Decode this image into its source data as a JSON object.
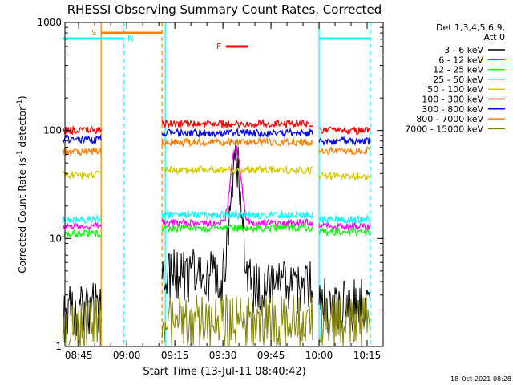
{
  "chart_data": {
    "type": "line",
    "title": "RHESSI Observing Summary Count Rates, Corrected",
    "xlabel": "Start Time (13-Jul-11 08:40:42)",
    "ylabel_main": "Corrected Count Rate (s",
    "ylabel_sup1": "-1",
    "ylabel_mid": " detector",
    "ylabel_sup2": "-1",
    "ylabel_end": ")",
    "yscale": "log",
    "ylim": [
      1,
      1000
    ],
    "y_ticks": [
      1,
      10,
      100,
      1000
    ],
    "y_tick_labels": [
      "1",
      "10",
      "100",
      "1000"
    ],
    "xlim": [
      "08:40:42",
      "10:20:00"
    ],
    "x_ticks": [
      "08:45",
      "09:00",
      "09:15",
      "09:30",
      "09:45",
      "10:00",
      "10:15"
    ],
    "legend_header": [
      "Det 1,3,4,5,6,9,",
      "Att 0"
    ],
    "legend_position": "right",
    "timestamp": "18-Oct-2021 08:28",
    "series": [
      {
        "name": "3 - 6 keV",
        "color": "#000000",
        "segments": [
          {
            "t": [
              "08:40",
              "08:52"
            ],
            "level": 2.2
          },
          {
            "t": [
              "09:11",
              "09:39"
            ],
            "level": 4.5,
            "peak_time": "09:34",
            "peak": 48
          },
          {
            "t": [
              "09:39",
              "09:58"
            ],
            "level": 3.5
          },
          {
            "t": [
              "10:00",
              "10:16"
            ],
            "level": 2.4
          }
        ]
      },
      {
        "name": "6 - 12 keV",
        "color": "#ff00ff",
        "segments": [
          {
            "t": [
              "08:40",
              "08:52"
            ],
            "level": 13
          },
          {
            "t": [
              "09:11",
              "09:58"
            ],
            "level": 14,
            "peak_time": "09:34",
            "peak": 68
          },
          {
            "t": [
              "10:00",
              "10:16"
            ],
            "level": 13
          }
        ]
      },
      {
        "name": "12 - 25 keV",
        "color": "#00ff00",
        "segments": [
          {
            "t": [
              "08:40",
              "08:52"
            ],
            "level": 11
          },
          {
            "t": [
              "09:11",
              "09:58"
            ],
            "level": 12.5
          },
          {
            "t": [
              "10:00",
              "10:16"
            ],
            "level": 11.5
          }
        ]
      },
      {
        "name": "25 - 50 keV",
        "color": "#00ffff",
        "segments": [
          {
            "t": [
              "08:40",
              "08:52"
            ],
            "level": 15
          },
          {
            "t": [
              "09:11",
              "09:58"
            ],
            "level": 16.5
          },
          {
            "t": [
              "10:00",
              "10:16"
            ],
            "level": 15
          }
        ]
      },
      {
        "name": "50 - 100 keV",
        "color": "#d4c800",
        "segments": [
          {
            "t": [
              "08:40",
              "08:52"
            ],
            "level": 39
          },
          {
            "t": [
              "09:11",
              "09:58"
            ],
            "level": 43
          },
          {
            "t": [
              "10:00",
              "10:16"
            ],
            "level": 38
          }
        ]
      },
      {
        "name": "100 - 300 keV",
        "color": "#ff0000",
        "segments": [
          {
            "t": [
              "08:40",
              "08:52"
            ],
            "level": 100
          },
          {
            "t": [
              "09:11",
              "09:58"
            ],
            "level": 115
          },
          {
            "t": [
              "10:00",
              "10:16"
            ],
            "level": 100
          }
        ]
      },
      {
        "name": "300 - 800 keV",
        "color": "#0000ff",
        "segments": [
          {
            "t": [
              "08:40",
              "08:52"
            ],
            "level": 82
          },
          {
            "t": [
              "09:11",
              "09:58"
            ],
            "level": 95
          },
          {
            "t": [
              "10:00",
              "10:16"
            ],
            "level": 80
          }
        ]
      },
      {
        "name": "800 - 7000 keV",
        "color": "#ff8000",
        "segments": [
          {
            "t": [
              "08:40",
              "08:52"
            ],
            "level": 64
          },
          {
            "t": [
              "09:11",
              "09:58"
            ],
            "level": 78
          },
          {
            "t": [
              "10:00",
              "10:16"
            ],
            "level": 65
          }
        ]
      },
      {
        "name": "7000 - 15000 keV",
        "color": "#808000",
        "segments": [
          {
            "t": [
              "08:40",
              "08:52"
            ],
            "level": 1.6
          },
          {
            "t": [
              "09:11",
              "09:58"
            ],
            "level": 1.7
          },
          {
            "t": [
              "10:00",
              "10:16"
            ],
            "level": 1.7
          }
        ]
      }
    ],
    "flags": [
      {
        "label": "S",
        "color": "#ff8000",
        "t": [
          "08:52",
          "09:11"
        ]
      },
      {
        "label": "N",
        "color": "#00ffff",
        "t": [
          "08:59",
          "08:59"
        ]
      },
      {
        "label": "F",
        "color": "#ff0000",
        "t": [
          "09:31",
          "09:38"
        ]
      }
    ],
    "eclipse_bars": [
      {
        "color": "#00ffff",
        "t": [
          "08:40",
          "08:59"
        ]
      },
      {
        "color": "#00ffff",
        "t": [
          "10:00",
          "10:16"
        ]
      }
    ],
    "vertical_markers": [
      {
        "t": "08:52",
        "color": "#ff8000",
        "style": "solid"
      },
      {
        "t": "08:59",
        "color": "#00ffff",
        "style": "dashed"
      },
      {
        "t": "09:11",
        "color": "#ff8000",
        "style": "dashed"
      },
      {
        "t": "09:12",
        "color": "#00ffff",
        "style": "solid"
      },
      {
        "t": "10:00",
        "color": "#00ffff",
        "style": "solid"
      },
      {
        "t": "10:16",
        "color": "#00ffff",
        "style": "dashed"
      }
    ]
  }
}
